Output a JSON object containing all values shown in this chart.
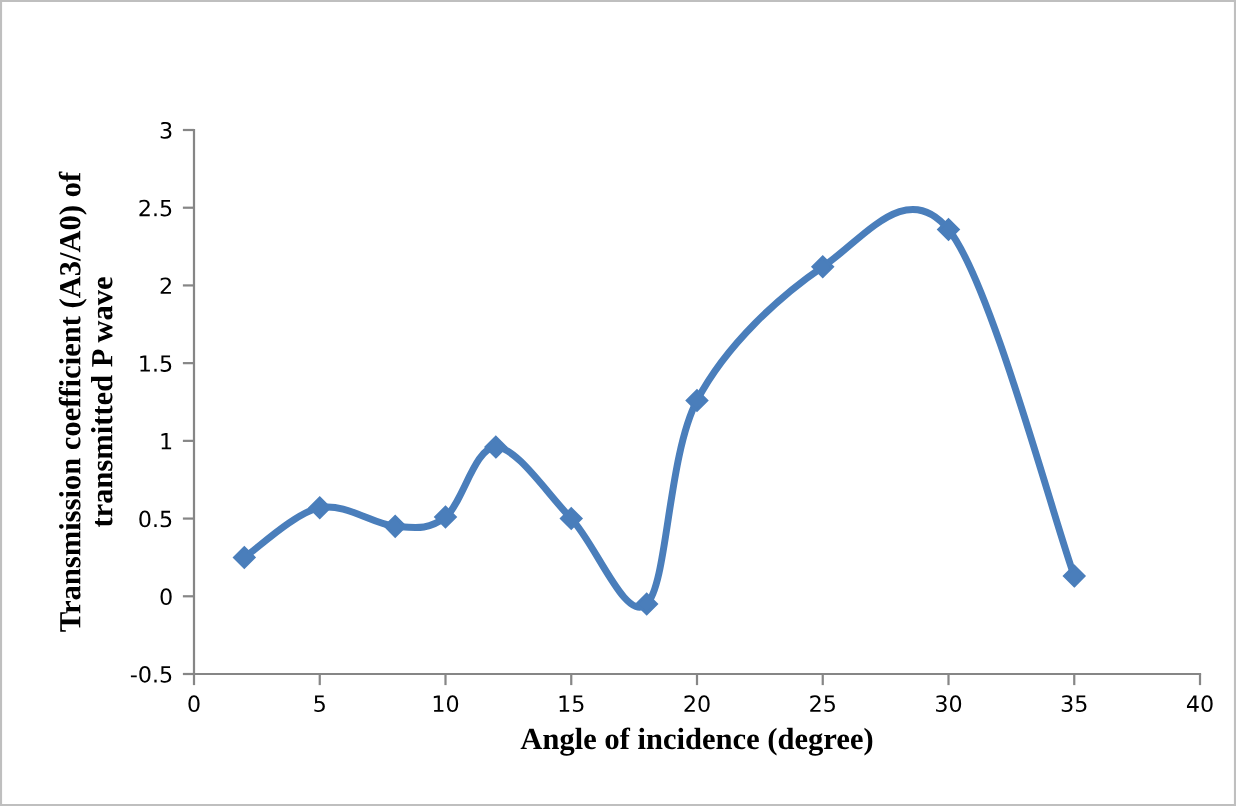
{
  "chart_data": {
    "type": "line",
    "xlabel": "Angle of incidence (degree)",
    "ylabel": "Transmission coefficient (A3/A0) of\ntransmitted P wave",
    "x": [
      2,
      5,
      8,
      10,
      12,
      15,
      18,
      20,
      25,
      30,
      35
    ],
    "series": [
      {
        "color": "#4a7ebb",
        "values": [
          0.25,
          0.57,
          0.45,
          0.51,
          0.96,
          0.5,
          -0.05,
          1.26,
          2.12,
          2.36,
          0.13
        ]
      }
    ],
    "xlim": [
      0,
      40
    ],
    "xticks": [
      0,
      5,
      10,
      15,
      20,
      25,
      30,
      35,
      40
    ],
    "ylim": [
      -0.5,
      3
    ],
    "yticks": [
      -0.5,
      0,
      0.5,
      1,
      1.5,
      2,
      2.5,
      3
    ],
    "marker": "diamond",
    "line_style": "solid",
    "grid": false,
    "legend": false
  }
}
